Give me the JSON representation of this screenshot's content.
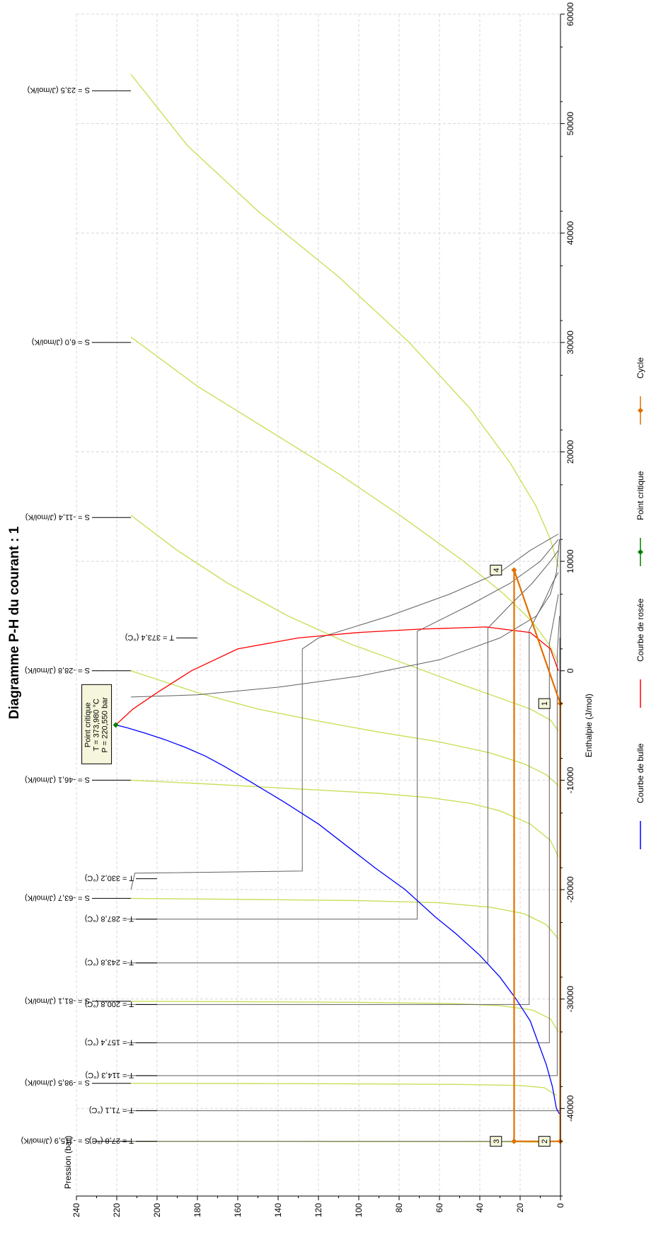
{
  "chart_data": {
    "type": "line",
    "title": "Diagramme P-H du courant : 1",
    "xlabel": "Enthalpie (J/mol)",
    "ylabel": "Pression (bar)",
    "xlim": [
      -48000,
      60000
    ],
    "ylim": [
      0,
      240
    ],
    "x_ticks": [
      -40000,
      -30000,
      -20000,
      -10000,
      0,
      10000,
      20000,
      30000,
      40000,
      50000,
      60000
    ],
    "y_ticks": [
      0,
      20,
      40,
      60,
      80,
      100,
      120,
      140,
      160,
      180,
      200,
      220,
      240
    ],
    "grid": true,
    "orientation": "rotated-90",
    "legend_position": "bottom",
    "legend": [
      {
        "name": "Courbe de bulle",
        "color": "#0000ff",
        "marker": "none"
      },
      {
        "name": "Courbe de rosée",
        "color": "#ff0000",
        "marker": "none"
      },
      {
        "name": "Point critique",
        "color": "#008000",
        "marker": "diamond"
      },
      {
        "name": "Cycle",
        "color": "#e07000",
        "marker": "diamond"
      }
    ],
    "series": [
      {
        "key": "bubble",
        "color": "#0000ff",
        "points": [
          [
            -40500,
            0.5
          ],
          [
            -40000,
            2
          ],
          [
            -38000,
            4
          ],
          [
            -36000,
            7
          ],
          [
            -34000,
            11
          ],
          [
            -32000,
            15
          ],
          [
            -30000,
            22
          ],
          [
            -28000,
            30
          ],
          [
            -26000,
            40
          ],
          [
            -24000,
            52
          ],
          [
            -22500,
            62
          ],
          [
            -20000,
            77
          ],
          [
            -18000,
            92
          ],
          [
            -16000,
            106
          ],
          [
            -14000,
            120
          ],
          [
            -12000,
            137
          ],
          [
            -10000,
            155
          ],
          [
            -8700,
            167
          ],
          [
            -7800,
            176
          ],
          [
            -7000,
            186
          ],
          [
            -6300,
            196
          ],
          [
            -5700,
            206
          ],
          [
            -5200,
            215
          ],
          [
            -4950,
            220.5
          ]
        ]
      },
      {
        "key": "dew",
        "color": "#ff0000",
        "points": [
          [
            -4950,
            220.5
          ],
          [
            -3500,
            212
          ],
          [
            -2000,
            200
          ],
          [
            0,
            183
          ],
          [
            2000,
            160
          ],
          [
            3000,
            130
          ],
          [
            3500,
            100
          ],
          [
            3800,
            70
          ],
          [
            4000,
            37
          ],
          [
            3500,
            15
          ],
          [
            2000,
            5
          ],
          [
            0,
            1
          ]
        ]
      }
    ],
    "critical_point": {
      "x": -4950,
      "y": 220.5,
      "label": "Point critique",
      "t_label": "T = 373,980 °C",
      "p_label": "P = 220,550 bar",
      "color": "#008000"
    },
    "cycle": {
      "color": "#e07000",
      "points": [
        [
          -43000,
          0.1
        ],
        [
          -43000,
          23
        ],
        [
          9200,
          23
        ],
        [
          -3000,
          0.1
        ],
        [
          -43000,
          0.1
        ]
      ],
      "labels": [
        {
          "text": "1",
          "x": -3000,
          "y": 8
        },
        {
          "text": "2",
          "x": -43000,
          "y": 8
        },
        {
          "text": "3",
          "x": -43000,
          "y": 32
        },
        {
          "text": "4",
          "x": 9200,
          "y": 32
        }
      ]
    },
    "isotherms": [
      {
        "label": "T = 373,4 (°C)",
        "color": "#606060",
        "points": [
          [
            12000,
            0.5
          ],
          [
            9000,
            2
          ],
          [
            7000,
            5
          ],
          [
            5000,
            12
          ],
          [
            3000,
            30
          ],
          [
            1000,
            60
          ],
          [
            -500,
            100
          ],
          [
            -1500,
            140
          ],
          [
            -2200,
            180
          ],
          [
            -2400,
            213
          ]
        ],
        "label_at": [
          3000,
          180
        ]
      },
      {
        "label": "T = 330,2 (°C)",
        "color": "#606060",
        "points": [
          [
            -20000,
            213
          ],
          [
            -18500,
            211
          ],
          [
            -18300,
            128
          ],
          [
            2000,
            128
          ],
          [
            3000,
            120
          ],
          [
            5000,
            85
          ],
          [
            7000,
            55
          ],
          [
            9000,
            30
          ],
          [
            11000,
            15
          ],
          [
            12500,
            1
          ]
        ],
        "label_at": [
          -19000,
          200
        ]
      },
      {
        "label": "T = 287,8 (°C)",
        "color": "#606060",
        "points": [
          [
            -22700,
            215
          ],
          [
            -22700,
            71
          ],
          [
            3600,
            71
          ],
          [
            6000,
            45
          ],
          [
            8000,
            25
          ],
          [
            10000,
            10
          ],
          [
            12000,
            1
          ]
        ],
        "label_at": [
          -22700,
          200
        ]
      },
      {
        "label": "T = 243,8 (°C)",
        "color": "#606060",
        "points": [
          [
            -26700,
            215
          ],
          [
            -26700,
            36
          ],
          [
            3900,
            36
          ],
          [
            6000,
            25
          ],
          [
            8000,
            14
          ],
          [
            10000,
            5
          ],
          [
            11000,
            1
          ]
        ],
        "label_at": [
          -26700,
          200
        ]
      },
      {
        "label": "T = 200,8 (°C)",
        "color": "#606060",
        "points": [
          [
            -30500,
            215
          ],
          [
            -30500,
            15.5
          ],
          [
            3700,
            15.5
          ],
          [
            6000,
            9
          ],
          [
            8000,
            4
          ],
          [
            9000,
            1
          ]
        ],
        "label_at": [
          -30500,
          200
        ]
      },
      {
        "label": "T = 157,4 (°C)",
        "color": "#606060",
        "points": [
          [
            -34000,
            215
          ],
          [
            -34000,
            5.5
          ],
          [
            2500,
            5.5
          ],
          [
            5000,
            3
          ],
          [
            7000,
            1
          ]
        ],
        "label_at": [
          -34000,
          200
        ]
      },
      {
        "label": "T = 114,3 (°C)",
        "color": "#606060",
        "points": [
          [
            -37000,
            215
          ],
          [
            -37000,
            1.6
          ],
          [
            1500,
            1.6
          ],
          [
            5000,
            0.5
          ]
        ],
        "label_at": [
          -37000,
          200
        ]
      },
      {
        "label": "T = 71,1 (°C)",
        "color": "#606060",
        "points": [
          [
            -40200,
            215
          ],
          [
            -40200,
            0.3
          ],
          [
            3000,
            0.3
          ]
        ],
        "label_at": [
          -40200,
          200
        ]
      },
      {
        "label": "T = 27,8 (°C)",
        "color": "#606060",
        "points": [
          [
            -43000,
            215
          ],
          [
            -43000,
            0.05
          ],
          [
            0,
            0.05
          ]
        ],
        "label_at": [
          -43000,
          200
        ]
      }
    ],
    "isentropes": [
      {
        "label": "S = 23,5 (J/mol/K)",
        "color": "#c8e05a",
        "points": [
          [
            54500,
            213
          ],
          [
            48000,
            185
          ],
          [
            42000,
            150
          ],
          [
            36000,
            110
          ],
          [
            30000,
            75
          ],
          [
            24000,
            45
          ],
          [
            19000,
            25
          ],
          [
            15000,
            12
          ],
          [
            12000,
            5
          ],
          [
            9500,
            1
          ]
        ],
        "label_at": [
          53000,
          213
        ]
      },
      {
        "label": "S = 6,0 (J/mol/K)",
        "color": "#c8e05a",
        "points": [
          [
            30500,
            213
          ],
          [
            26000,
            180
          ],
          [
            22000,
            145
          ],
          [
            18000,
            110
          ],
          [
            14000,
            78
          ],
          [
            10000,
            48
          ],
          [
            7000,
            28
          ],
          [
            4500,
            14
          ],
          [
            2500,
            6
          ],
          [
            800,
            1
          ]
        ],
        "label_at": [
          30000,
          213
        ]
      },
      {
        "label": "S = -11,4 (J/mol/K)",
        "color": "#c8e05a",
        "points": [
          [
            14200,
            213
          ],
          [
            11000,
            190
          ],
          [
            8000,
            165
          ],
          [
            5000,
            135
          ],
          [
            2500,
            105
          ],
          [
            500,
            75
          ],
          [
            -1200,
            50
          ],
          [
            -2500,
            30
          ],
          [
            -3500,
            15
          ],
          [
            -4500,
            5
          ],
          [
            -5500,
            1
          ]
        ],
        "label_at": [
          14000,
          213
        ]
      },
      {
        "label": "S = -28,8 (J/mol/K)",
        "color": "#c8e05a",
        "points": [
          [
            0,
            213
          ],
          [
            -2000,
            180
          ],
          [
            -3500,
            150
          ],
          [
            -4600,
            120
          ],
          [
            -5600,
            90
          ],
          [
            -6500,
            60
          ],
          [
            -7500,
            35
          ],
          [
            -8500,
            18
          ],
          [
            -9500,
            7
          ],
          [
            -10500,
            1
          ]
        ],
        "label_at": [
          0,
          213
        ]
      },
      {
        "label": "S = -46,1 (J/mol/K)",
        "color": "#c8e05a",
        "points": [
          [
            -10000,
            213
          ],
          [
            -10300,
            180
          ],
          [
            -10600,
            150
          ],
          [
            -10900,
            120
          ],
          [
            -11200,
            90
          ],
          [
            -11600,
            65
          ],
          [
            -12100,
            45
          ],
          [
            -12800,
            30
          ],
          [
            -14000,
            15
          ],
          [
            -15500,
            5
          ],
          [
            -17000,
            1
          ]
        ],
        "label_at": [
          -10000,
          213
        ]
      },
      {
        "label": "S = -63,7 (J/mol/K)",
        "color": "#c8e05a",
        "points": [
          [
            -20800,
            213
          ],
          [
            -20900,
            150
          ],
          [
            -21000,
            100
          ],
          [
            -21200,
            60
          ],
          [
            -21600,
            35
          ],
          [
            -22200,
            18
          ],
          [
            -23200,
            7
          ],
          [
            -24500,
            1
          ]
        ],
        "label_at": [
          -20800,
          213
        ]
      },
      {
        "label": "S = -81,1 (J/mol/K)",
        "color": "#c8e05a",
        "points": [
          [
            -30200,
            213
          ],
          [
            -30250,
            150
          ],
          [
            -30300,
            100
          ],
          [
            -30400,
            55
          ],
          [
            -30600,
            30
          ],
          [
            -31000,
            14
          ],
          [
            -31800,
            5
          ],
          [
            -33000,
            1
          ]
        ],
        "label_at": [
          -30200,
          213
        ]
      },
      {
        "label": "S = -98,5 (J/mol/K)",
        "color": "#c8e05a",
        "points": [
          [
            -37700,
            213
          ],
          [
            -37720,
            150
          ],
          [
            -37750,
            100
          ],
          [
            -37800,
            50
          ],
          [
            -37900,
            20
          ],
          [
            -38100,
            8
          ],
          [
            -38800,
            2
          ]
        ],
        "label_at": [
          -37700,
          213
        ]
      },
      {
        "label": "S = -115,9 (J/mol/K)",
        "color": "#c8e05a",
        "points": [
          [
            -43000,
            213
          ],
          [
            -43010,
            150
          ],
          [
            -43020,
            100
          ],
          [
            -43030,
            50
          ],
          [
            -43050,
            20
          ],
          [
            -43100,
            5
          ]
        ],
        "label_at": [
          -43000,
          213
        ]
      }
    ]
  }
}
